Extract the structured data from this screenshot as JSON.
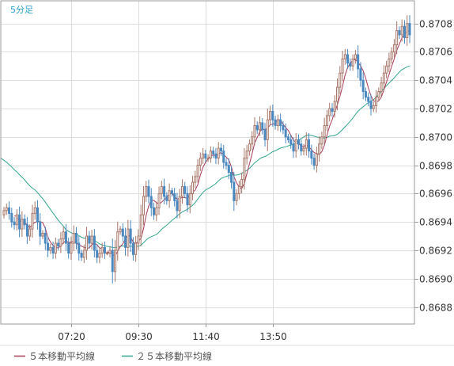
{
  "chart_data": {
    "type": "candlestick",
    "timeframe_label": "5分足",
    "colors": {
      "up": "#a8786a",
      "down": "#4a88c0",
      "ma5": "#a83a58",
      "ma25": "#33a58e",
      "grid": "#dddddd",
      "frame": "#9a9a9a"
    },
    "x_ticks": [
      "07:20",
      "09:30",
      "11:40",
      "13:50"
    ],
    "y_ticks": [
      "0.8708",
      "0.8706",
      "0.8704",
      "0.8702",
      "0.8700",
      "0.8698",
      "0.8696",
      "0.8694",
      "0.8692",
      "0.8690",
      "0.8688"
    ],
    "ylim": [
      0.86868,
      0.87096
    ],
    "grid": true,
    "legend": [
      {
        "name": "５本移動平均線",
        "color": "#a83a58"
      },
      {
        "name": "２５本移動平均線",
        "color": "#33a58e"
      }
    ],
    "close": [
      0.86948,
      0.8695,
      0.86946,
      0.8694,
      0.86938,
      0.86945,
      0.86935,
      0.86942,
      0.86938,
      0.8693,
      0.86935,
      0.86946,
      0.8695,
      0.8694,
      0.8693,
      0.86932,
      0.86925,
      0.8692,
      0.86922,
      0.86918,
      0.86925,
      0.86923,
      0.86928,
      0.86933,
      0.86925,
      0.86918,
      0.86925,
      0.86932,
      0.86925,
      0.86918,
      0.86915,
      0.8692,
      0.8693,
      0.86925,
      0.8693,
      0.8692,
      0.86915,
      0.86918,
      0.86922,
      0.86918,
      0.86918,
      0.8692,
      0.86905,
      0.8692,
      0.86933,
      0.86935,
      0.8693,
      0.86922,
      0.86935,
      0.86925,
      0.86917,
      0.86925,
      0.8693,
      0.86945,
      0.86958,
      0.86965,
      0.86958,
      0.8695,
      0.86945,
      0.8695,
      0.8696,
      0.86965,
      0.86958,
      0.86955,
      0.86962,
      0.8696,
      0.86955,
      0.86948,
      0.86958,
      0.86965,
      0.8696,
      0.86952,
      0.8696,
      0.86968,
      0.86972,
      0.8698,
      0.86985,
      0.86988,
      0.86985,
      0.86985,
      0.8699,
      0.86988,
      0.86985,
      0.86992,
      0.8699,
      0.86982,
      0.8698,
      0.86975,
      0.86968,
      0.86955,
      0.8696,
      0.86965,
      0.8697,
      0.86985,
      0.8699,
      0.86995,
      0.87,
      0.87008,
      0.87005,
      0.8701,
      0.87005,
      0.86998,
      0.87012,
      0.87018,
      0.87012,
      0.87008,
      0.87012,
      0.87008,
      0.87005,
      0.87,
      0.86998,
      0.86995,
      0.8699,
      0.86998,
      0.86995,
      0.8699,
      0.86992,
      0.86998,
      0.8699,
      0.86985,
      0.8698,
      0.86988,
      0.86995,
      0.87,
      0.87008,
      0.87015,
      0.8702,
      0.87018,
      0.87025,
      0.87035,
      0.87045,
      0.87055,
      0.87058,
      0.87052,
      0.8705,
      0.87055,
      0.87058,
      0.87048,
      0.8704,
      0.87032,
      0.87028,
      0.87025,
      0.8702,
      0.87022,
      0.87028,
      0.87032,
      0.87038,
      0.87045,
      0.8705,
      0.87055,
      0.8706,
      0.87065,
      0.87075,
      0.87072,
      0.87078,
      0.8707,
      0.8708,
      0.87072
    ]
  }
}
